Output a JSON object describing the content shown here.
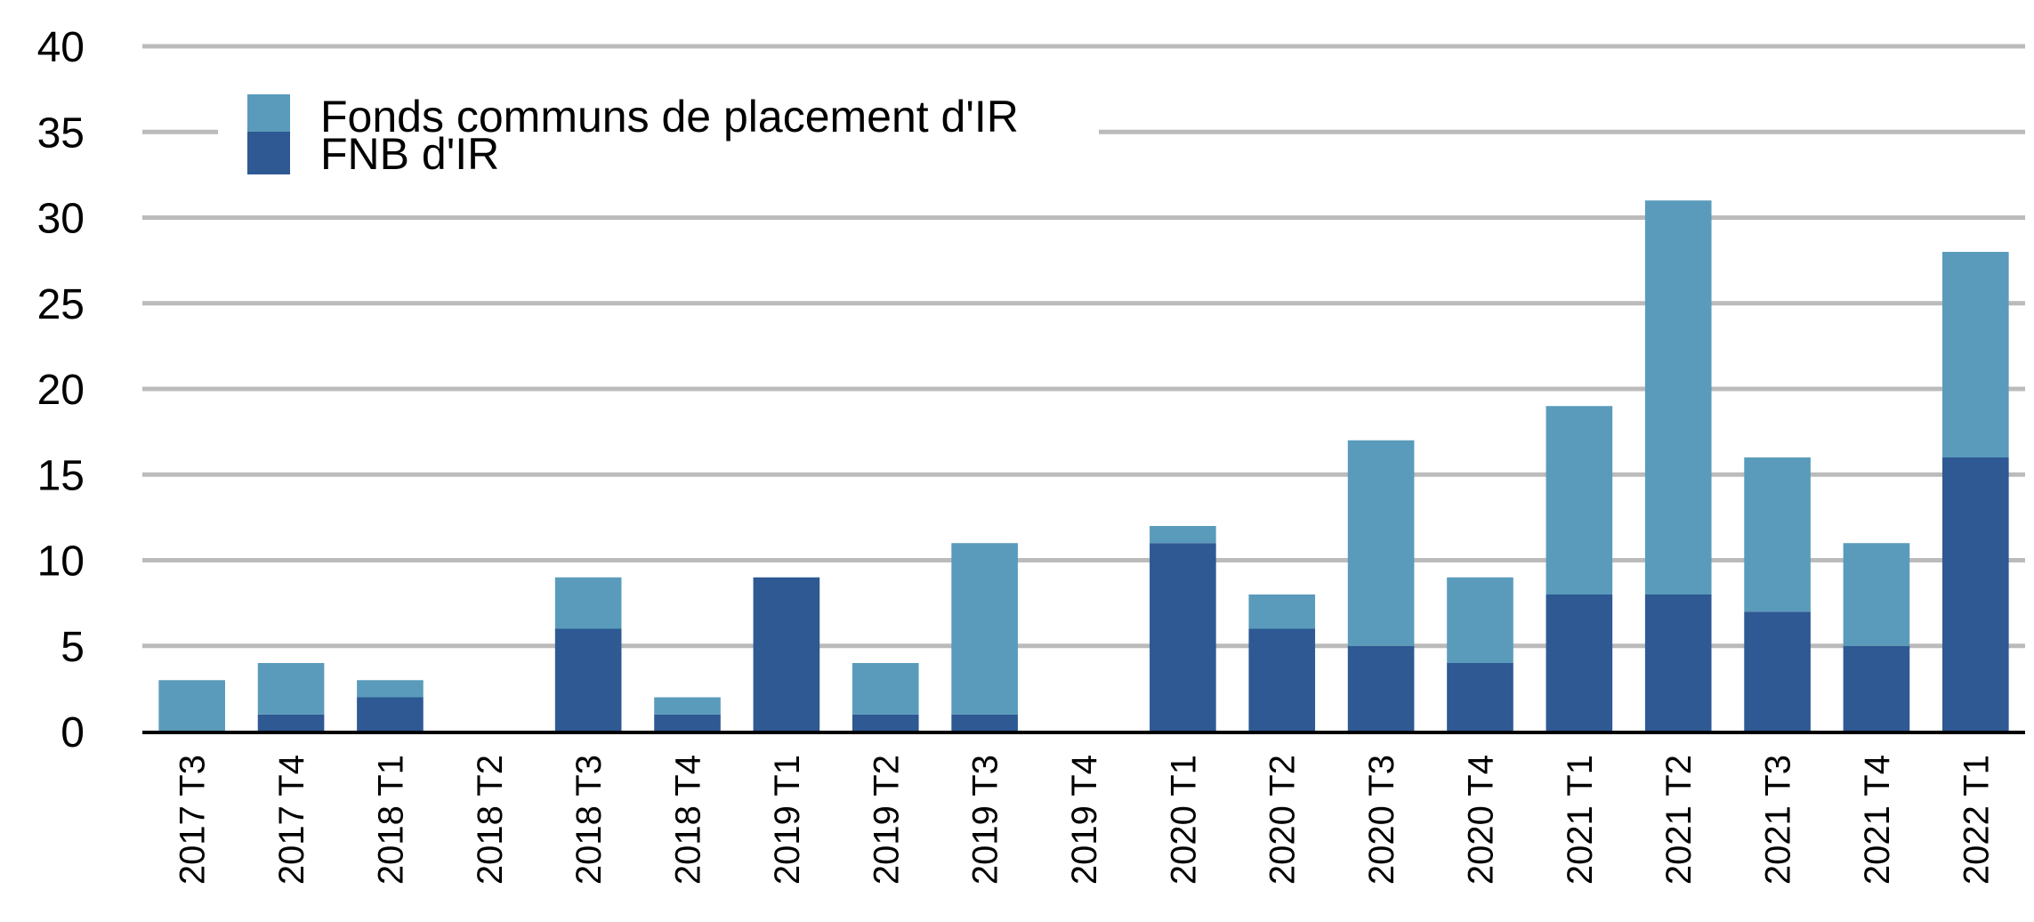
{
  "chart_data": {
    "type": "bar",
    "stacked": true,
    "title": "",
    "xlabel": "",
    "ylabel": "",
    "ylim": [
      0,
      40
    ],
    "yticks": [
      0,
      5,
      10,
      15,
      20,
      25,
      30,
      35,
      40
    ],
    "grid": "horizontal",
    "legend_position": "top-left",
    "categories": [
      "2017 T3",
      "2017 T4",
      "2018 T1",
      "2018 T2",
      "2018 T3",
      "2018 T4",
      "2019 T1",
      "2019 T2",
      "2019 T3",
      "2019 T4",
      "2020 T1",
      "2020 T2",
      "2020 T3",
      "2020 T4",
      "2021 T1",
      "2021 T2",
      "2021 T3",
      "2021 T4",
      "2022 T1"
    ],
    "series": [
      {
        "name": "FNB d'IR",
        "color": "#2e5993",
        "values": [
          0,
          1,
          2,
          0,
          6,
          1,
          9,
          1,
          1,
          0,
          11,
          6,
          5,
          4,
          8,
          8,
          7,
          5,
          16
        ]
      },
      {
        "name": "Fonds communs de placement d'IR",
        "color": "#5a9bbb",
        "values": [
          3,
          3,
          1,
          0,
          3,
          1,
          0,
          3,
          10,
          0,
          1,
          2,
          12,
          5,
          11,
          23,
          9,
          6,
          12
        ]
      }
    ],
    "legend_order": [
      1,
      0
    ],
    "grid_color": "#bbbbbb",
    "axis_color": "#000000"
  }
}
